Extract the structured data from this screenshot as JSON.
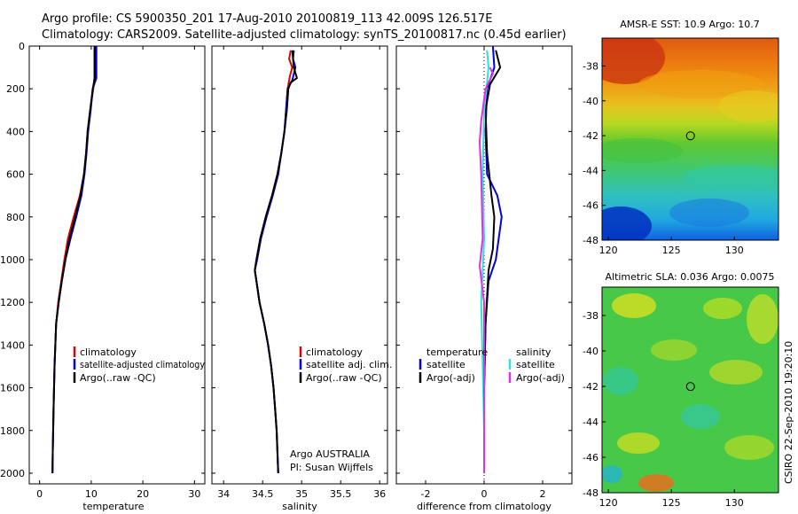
{
  "header": {
    "line1": "Argo profile: CS 5900350_201 17-Aug-2010 20100819_113 42.009S 126.517E",
    "line2": "Climatology: CARS2009. Satellite-adjusted climatology: synTS_20100817.nc (0.45d earlier)"
  },
  "credit": {
    "argo": "Argo AUSTRALIA",
    "pi": "PI: Susan Wijffels",
    "stamp": "CSIRO 22-Sep-2010 19:20:10"
  },
  "colors": {
    "climatology": "#e00000",
    "satellite": "#0000e0",
    "argo": "#000000",
    "sat_sal": "#30e0e0",
    "argo_sal": "#e030e0"
  },
  "chart_data": [
    {
      "id": "temperature",
      "type": "line",
      "xlabel": "temperature",
      "ylabel": "",
      "xlim": [
        -2,
        32
      ],
      "ylim": [
        2050,
        0
      ],
      "xticks": [
        0,
        10,
        20,
        30
      ],
      "yticks": [
        0,
        200,
        400,
        600,
        800,
        1000,
        1200,
        1400,
        1600,
        1800,
        2000
      ],
      "legend": [
        "climatology",
        "satellite-adjusted climatology",
        "Argo(..raw -QC)"
      ],
      "series": [
        {
          "name": "climatology",
          "color": "#e00000",
          "points": [
            [
              10.6,
              0
            ],
            [
              10.6,
              150
            ],
            [
              10.4,
              200
            ],
            [
              9.8,
              300
            ],
            [
              9.3,
              400
            ],
            [
              9.0,
              500
            ],
            [
              8.6,
              600
            ],
            [
              7.8,
              700
            ],
            [
              6.6,
              800
            ],
            [
              5.5,
              900
            ],
            [
              4.8,
              1000
            ],
            [
              4.2,
              1100
            ],
            [
              3.6,
              1200
            ],
            [
              3.2,
              1300
            ],
            [
              2.9,
              1500
            ],
            [
              2.7,
              1700
            ],
            [
              2.55,
              1900
            ],
            [
              2.5,
              2000
            ]
          ]
        },
        {
          "name": "satellite-adjusted climatology",
          "color": "#0000e0",
          "points": [
            [
              11.0,
              0
            ],
            [
              11.0,
              150
            ],
            [
              10.3,
              200
            ],
            [
              9.9,
              300
            ],
            [
              9.4,
              400
            ],
            [
              9.1,
              500
            ],
            [
              8.7,
              600
            ],
            [
              8.1,
              700
            ],
            [
              7.1,
              800
            ],
            [
              6.0,
              900
            ],
            [
              5.0,
              1000
            ],
            [
              4.3,
              1100
            ],
            [
              3.7,
              1200
            ],
            [
              3.2,
              1300
            ],
            [
              2.9,
              1500
            ],
            [
              2.7,
              1700
            ],
            [
              2.55,
              1900
            ],
            [
              2.5,
              2000
            ]
          ]
        },
        {
          "name": "Argo(..raw -QC)",
          "color": "#000000",
          "points": [
            [
              10.7,
              0
            ],
            [
              10.7,
              150
            ],
            [
              10.3,
              200
            ],
            [
              9.8,
              300
            ],
            [
              9.3,
              400
            ],
            [
              9.0,
              500
            ],
            [
              8.6,
              600
            ],
            [
              7.9,
              700
            ],
            [
              6.9,
              800
            ],
            [
              5.8,
              900
            ],
            [
              5.0,
              1000
            ],
            [
              4.3,
              1100
            ],
            [
              3.7,
              1200
            ],
            [
              3.2,
              1300
            ],
            [
              2.9,
              1500
            ],
            [
              2.7,
              1700
            ],
            [
              2.55,
              1900
            ],
            [
              2.5,
              2000
            ]
          ]
        }
      ]
    },
    {
      "id": "salinity",
      "type": "line",
      "xlabel": "salinity",
      "ylabel": "",
      "xlim": [
        33.85,
        36.1
      ],
      "ylim": [
        2050,
        0
      ],
      "xticks": [
        34,
        34.5,
        35,
        35.5,
        36
      ],
      "legend": [
        "climatology",
        "satellite adj. clim.",
        "Argo(..raw -QC)"
      ],
      "series": [
        {
          "name": "climatology",
          "color": "#e00000",
          "points": [
            [
              34.86,
              20
            ],
            [
              34.84,
              60
            ],
            [
              34.88,
              100
            ],
            [
              34.85,
              140
            ],
            [
              34.82,
              200
            ],
            [
              34.8,
              300
            ],
            [
              34.78,
              400
            ],
            [
              34.74,
              500
            ],
            [
              34.69,
              600
            ],
            [
              34.62,
              700
            ],
            [
              34.54,
              800
            ],
            [
              34.47,
              900
            ],
            [
              34.42,
              1000
            ],
            [
              34.4,
              1050
            ],
            [
              34.42,
              1100
            ],
            [
              34.46,
              1200
            ],
            [
              34.52,
              1300
            ],
            [
              34.57,
              1400
            ],
            [
              34.61,
              1500
            ],
            [
              34.64,
              1600
            ],
            [
              34.66,
              1700
            ],
            [
              34.68,
              1800
            ],
            [
              34.69,
              1900
            ],
            [
              34.7,
              2000
            ]
          ]
        },
        {
          "name": "satellite adj. clim.",
          "color": "#0000e0",
          "points": [
            [
              34.9,
              20
            ],
            [
              34.89,
              60
            ],
            [
              34.92,
              100
            ],
            [
              34.88,
              160
            ],
            [
              34.82,
              200
            ],
            [
              34.8,
              300
            ],
            [
              34.78,
              400
            ],
            [
              34.74,
              500
            ],
            [
              34.7,
              600
            ],
            [
              34.63,
              700
            ],
            [
              34.55,
              800
            ],
            [
              34.48,
              900
            ],
            [
              34.43,
              1000
            ],
            [
              34.4,
              1050
            ],
            [
              34.42,
              1100
            ],
            [
              34.46,
              1200
            ],
            [
              34.52,
              1300
            ],
            [
              34.57,
              1400
            ],
            [
              34.61,
              1500
            ],
            [
              34.64,
              1600
            ],
            [
              34.66,
              1700
            ],
            [
              34.68,
              1800
            ],
            [
              34.69,
              1900
            ],
            [
              34.7,
              2000
            ]
          ]
        },
        {
          "name": "Argo(..raw -QC)",
          "color": "#000000",
          "points": [
            [
              34.88,
              20
            ],
            [
              34.9,
              100
            ],
            [
              34.94,
              150
            ],
            [
              34.86,
              170
            ],
            [
              34.83,
              200
            ],
            [
              34.81,
              300
            ],
            [
              34.78,
              400
            ],
            [
              34.74,
              500
            ],
            [
              34.69,
              600
            ],
            [
              34.62,
              700
            ],
            [
              34.54,
              800
            ],
            [
              34.47,
              900
            ],
            [
              34.42,
              1000
            ],
            [
              34.4,
              1050
            ],
            [
              34.42,
              1100
            ],
            [
              34.46,
              1200
            ],
            [
              34.52,
              1300
            ],
            [
              34.57,
              1400
            ],
            [
              34.61,
              1500
            ],
            [
              34.64,
              1600
            ],
            [
              34.66,
              1700
            ],
            [
              34.68,
              1800
            ],
            [
              34.69,
              1900
            ],
            [
              34.7,
              2000
            ]
          ]
        }
      ]
    },
    {
      "id": "difference",
      "type": "line",
      "xlabel": "difference from climatology",
      "ylabel": "",
      "xlim": [
        -3,
        3
      ],
      "ylim": [
        2050,
        0
      ],
      "xticks": [
        -2,
        0,
        2
      ],
      "legend_titles": [
        "temperature",
        "salinity"
      ],
      "legend": [
        "satellite",
        "Argo(-adj)",
        "satellite",
        "Argo(-adj)"
      ],
      "series": [
        {
          "name": "temperature satellite",
          "color": "#0000e0",
          "points": [
            [
              0.3,
              0
            ],
            [
              0.35,
              100
            ],
            [
              0.1,
              200
            ],
            [
              0.05,
              400
            ],
            [
              0.1,
              600
            ],
            [
              0.45,
              700
            ],
            [
              0.6,
              800
            ],
            [
              0.5,
              900
            ],
            [
              0.4,
              1000
            ],
            [
              0.15,
              1100
            ],
            [
              0.05,
              1300
            ],
            [
              0,
              1600
            ],
            [
              0,
              2000
            ]
          ]
        },
        {
          "name": "temperature Argo(-adj)",
          "color": "#000000",
          "points": [
            [
              0.4,
              20
            ],
            [
              0.55,
              100
            ],
            [
              0.2,
              180
            ],
            [
              0.05,
              300
            ],
            [
              0.1,
              500
            ],
            [
              0.25,
              700
            ],
            [
              0.35,
              800
            ],
            [
              0.3,
              950
            ],
            [
              0.15,
              1050
            ],
            [
              0.05,
              1300
            ],
            [
              0,
              1600
            ],
            [
              0,
              2000
            ]
          ]
        },
        {
          "name": "salinity satellite",
          "color": "#30e0e0",
          "points": [
            [
              0.1,
              20
            ],
            [
              0.15,
              100
            ],
            [
              0,
              300
            ],
            [
              -0.05,
              600
            ],
            [
              0,
              900
            ],
            [
              -0.1,
              1200
            ],
            [
              -0.05,
              1500
            ],
            [
              0,
              1800
            ],
            [
              0,
              2000
            ]
          ]
        },
        {
          "name": "salinity Argo(-adj)",
          "color": "#e030e0",
          "points": [
            [
              0.2,
              100
            ],
            [
              0.3,
              130
            ],
            [
              0.05,
              200
            ],
            [
              -0.1,
              350
            ],
            [
              -0.15,
              450
            ],
            [
              -0.1,
              600
            ],
            [
              -0.05,
              900
            ],
            [
              -0.15,
              1030
            ],
            [
              0,
              1200
            ],
            [
              0,
              2000
            ]
          ]
        }
      ]
    },
    {
      "id": "sst_map",
      "type": "heatmap",
      "title": "AMSR-E SST: 10.9 Argo: 10.7",
      "xlim": [
        119.5,
        133.5
      ],
      "ylim": [
        -48,
        -36.4
      ],
      "xticks": [
        120,
        125,
        130
      ],
      "yticks": [
        -38,
        -40,
        -42,
        -44,
        -46,
        -48
      ],
      "marker": {
        "lon": 126.517,
        "lat": -42.009
      }
    },
    {
      "id": "sla_map",
      "type": "heatmap",
      "title": "Altimetric SLA: 0.036 Argo: 0.0075",
      "xlim": [
        119.5,
        133.5
      ],
      "ylim": [
        -48,
        -36.4
      ],
      "xticks": [
        120,
        125,
        130
      ],
      "yticks": [
        -38,
        -40,
        -42,
        -44,
        -46,
        -48
      ],
      "marker": {
        "lon": 126.517,
        "lat": -42.009
      }
    }
  ]
}
